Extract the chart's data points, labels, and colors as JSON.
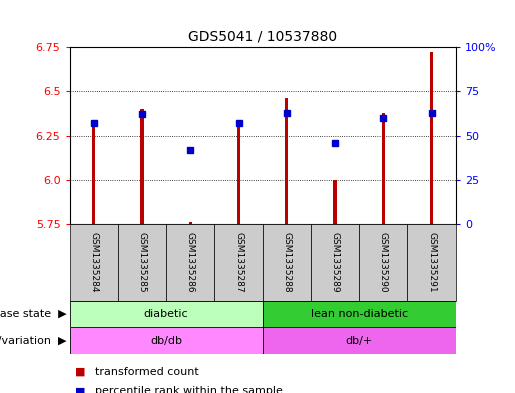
{
  "title": "GDS5041 / 10537880",
  "samples": [
    "GSM1335284",
    "GSM1335285",
    "GSM1335286",
    "GSM1335287",
    "GSM1335288",
    "GSM1335289",
    "GSM1335290",
    "GSM1335291"
  ],
  "transformed_count": [
    6.3,
    6.4,
    5.76,
    6.3,
    6.46,
    6.0,
    6.38,
    6.72
  ],
  "percentile_rank": [
    57,
    62,
    42,
    57,
    63,
    46,
    60,
    63
  ],
  "ylim_left": [
    5.75,
    6.75
  ],
  "ylim_right": [
    0,
    100
  ],
  "yticks_left": [
    5.75,
    6.0,
    6.25,
    6.5,
    6.75
  ],
  "yticks_right": [
    0,
    25,
    50,
    75,
    100
  ],
  "bar_color": "#bb0000",
  "marker_color": "#0000cc",
  "bar_bottom": 5.75,
  "bar_width": 0.07,
  "disease_state_groups": [
    {
      "label": "diabetic",
      "start": 0,
      "end": 4,
      "color": "#bbffbb"
    },
    {
      "label": "lean non-diabetic",
      "start": 4,
      "end": 8,
      "color": "#33cc33"
    }
  ],
  "genotype_groups": [
    {
      "label": "db/db",
      "start": 0,
      "end": 4,
      "color": "#ff88ff"
    },
    {
      "label": "db/+",
      "start": 4,
      "end": 8,
      "color": "#ee66ee"
    }
  ],
  "legend_items": [
    {
      "label": "transformed count",
      "color": "#bb0000"
    },
    {
      "label": "percentile rank within the sample",
      "color": "#0000cc"
    }
  ],
  "bg_color": "#cccccc",
  "plot_bg": "#ffffff",
  "title_fontsize": 10,
  "tick_fontsize": 8,
  "label_fontsize": 8,
  "sample_fontsize": 6.5
}
